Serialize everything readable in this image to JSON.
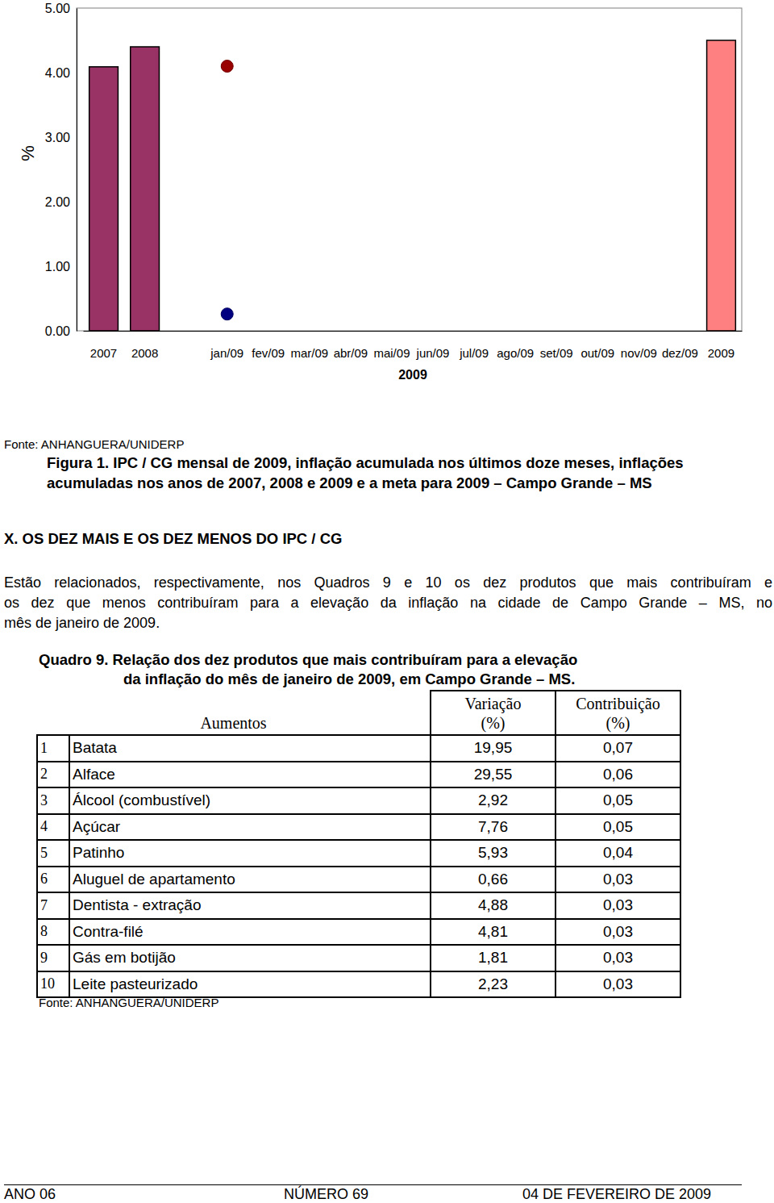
{
  "chart_data": {
    "type": "bar",
    "categories": [
      "2007",
      "2008",
      null,
      "jan/09",
      "fev/09",
      "mar/09",
      "abr/09",
      "mai/09",
      "jun/09",
      "jul/09",
      "ago/09",
      "set/09",
      "out/09",
      "nov/09",
      "dez/09",
      "2009"
    ],
    "series": [
      {
        "type": "bar",
        "color": "#993366",
        "values": [
          4.09,
          4.4,
          null,
          null,
          null,
          null,
          null,
          null,
          null,
          null,
          null,
          null,
          null,
          null,
          null,
          null
        ]
      },
      {
        "type": "bar",
        "color": "#ff8080",
        "values": [
          null,
          null,
          null,
          null,
          null,
          null,
          null,
          null,
          null,
          null,
          null,
          null,
          null,
          null,
          null,
          4.5
        ]
      },
      {
        "type": "scatter",
        "color": "#990000",
        "marker": "circle",
        "values": [
          null,
          null,
          null,
          4.1,
          null,
          null,
          null,
          null,
          null,
          null,
          null,
          null,
          null,
          null,
          null,
          null
        ]
      },
      {
        "type": "scatter",
        "color": "#000080",
        "marker": "circle",
        "values": [
          null,
          null,
          null,
          0.26,
          null,
          null,
          null,
          null,
          null,
          null,
          null,
          null,
          null,
          null,
          null,
          null
        ]
      }
    ],
    "ylim": [
      0,
      5
    ],
    "yticks": [
      {
        "value": 0,
        "label": "0.00"
      },
      {
        "value": 1,
        "label": "1.00"
      },
      {
        "value": 2,
        "label": "2.00"
      },
      {
        "value": 3,
        "label": "3.00"
      },
      {
        "value": 4,
        "label": "4.00"
      },
      {
        "value": 5,
        "label": "5.00"
      }
    ],
    "ylabel": "%",
    "xlabel": "2009",
    "grid": false
  },
  "source_top": "Fonte: ANHANGUERA/UNIDERP",
  "caption": [
    "Figura 1. IPC / CG mensal de 2009, inflação acumulada nos últimos doze meses, inflações",
    "acumuladas nos anos de 2007, 2008 e 2009 e a meta para 2009 – Campo Grande – MS"
  ],
  "heading": "X. OS DEZ MAIS E OS DEZ MENOS DO IPC / CG",
  "paragraph": [
    "Estão relacionados, respectivamente, nos Quadros 9 e 10 os dez produtos que mais contribuíram e",
    "os dez que menos contribuíram para a elevação da inflação na cidade de Campo Grande – MS, no",
    "mês de janeiro de 2009."
  ],
  "table": {
    "title": [
      "Quadro 9. Relação dos dez produtos que mais contribuíram para a elevação",
      "da inflação do mês de janeiro de 2009, em Campo Grande – MS."
    ],
    "header": {
      "label": "Aumentos",
      "columns": [
        [
          "Variação",
          "(%)"
        ],
        [
          "Contribuição",
          "(%)"
        ]
      ]
    },
    "rows": [
      [
        "1",
        "Batata",
        "19,95",
        "0,07"
      ],
      [
        "2",
        "Alface",
        "29,55",
        "0,06"
      ],
      [
        "3",
        "Álcool (combustível)",
        "2,92",
        "0,05"
      ],
      [
        "4",
        "Açúcar",
        "7,76",
        "0,05"
      ],
      [
        "5",
        "Patinho",
        "5,93",
        "0,04"
      ],
      [
        "6",
        "Aluguel de apartamento",
        "0,66",
        "0,03"
      ],
      [
        "7",
        "Dentista - extração",
        "4,88",
        "0,03"
      ],
      [
        "8",
        "Contra-filé",
        "4,81",
        "0,03"
      ],
      [
        "9",
        "Gás em botijão",
        "1,81",
        "0,03"
      ],
      [
        "10",
        "Leite pasteurizado",
        "2,23",
        "0,03"
      ]
    ]
  },
  "source_bottom": "Fonte: ANHANGUERA/UNIDERP",
  "footer": [
    "ANO 06",
    "NÚMERO 69",
    "04 DE FEVEREIRO DE 2009"
  ]
}
